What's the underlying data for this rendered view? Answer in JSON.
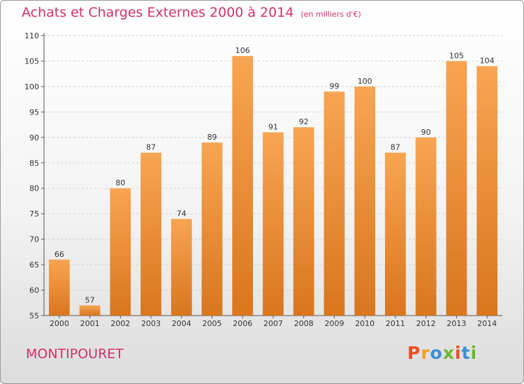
{
  "header": {
    "title": "Achats et Charges Externes 2000 à 2014",
    "subtitle": "(en milliers d'€)"
  },
  "footer": {
    "commune": "MONTIPOURET",
    "logo_text": "Proxiti"
  },
  "colors": {
    "title": "#d2306a",
    "bar_top": "#f7a552",
    "bar_bottom": "#d9761e",
    "logo_letters": [
      "#e8501e",
      "#f0a020",
      "#3a8fd6",
      "#6ab82e",
      "#e8501e",
      "#3a8fd6",
      "#6ab82e"
    ]
  },
  "chart_data": {
    "type": "bar",
    "categories": [
      "2000",
      "2001",
      "2002",
      "2003",
      "2004",
      "2005",
      "2006",
      "2007",
      "2008",
      "2009",
      "2010",
      "2011",
      "2012",
      "2013",
      "2014"
    ],
    "values": [
      66,
      57,
      80,
      87,
      74,
      89,
      106,
      91,
      92,
      99,
      100,
      87,
      90,
      105,
      104
    ],
    "ylim": [
      55,
      110
    ],
    "yticks": [
      55,
      60,
      65,
      70,
      75,
      80,
      85,
      90,
      95,
      100,
      105,
      110
    ],
    "grid": true,
    "legend": "none"
  }
}
